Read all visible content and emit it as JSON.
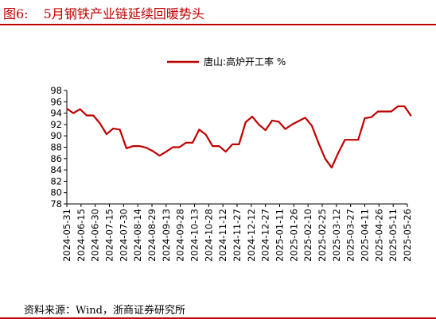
{
  "header": {
    "figure_label": "图6:",
    "title": "5月钢铁产业链延续回暖势头"
  },
  "footer": {
    "source": "资料来源：Wind，浙商证券研究所"
  },
  "colors": {
    "accent": "#c00000",
    "series": "#c00000",
    "axis": "#000000"
  },
  "chart_data": {
    "type": "line",
    "title": "",
    "xlabel": "",
    "ylabel": "",
    "ylim": [
      78,
      98
    ],
    "yticks": [
      78,
      80,
      82,
      84,
      86,
      88,
      90,
      92,
      94,
      96,
      98
    ],
    "grid": false,
    "legend_position": "top-center",
    "x_tick_labels": [
      "2024-05-31",
      "2024-06-15",
      "2024-06-30",
      "2024-07-15",
      "2024-07-30",
      "2024-08-14",
      "2024-08-29",
      "2024-09-13",
      "2024-09-28",
      "2024-10-13",
      "2024-10-28",
      "2024-11-12",
      "2024-11-27",
      "2024-12-12",
      "2024-12-27",
      "2025-01-11",
      "2025-01-26",
      "2025-02-10",
      "2025-02-25",
      "2025-03-12",
      "2025-03-27",
      "2025-04-11",
      "2025-04-26",
      "2025-05-11",
      "2025-05-26"
    ],
    "series": [
      {
        "name": "唐山:高炉开工率 %",
        "points": [
          {
            "x": "2024-05-31",
            "y": 94.8
          },
          {
            "x": "2024-06-07",
            "y": 94.0
          },
          {
            "x": "2024-06-14",
            "y": 94.7
          },
          {
            "x": "2024-06-21",
            "y": 93.6
          },
          {
            "x": "2024-06-28",
            "y": 93.6
          },
          {
            "x": "2024-07-05",
            "y": 92.2
          },
          {
            "x": "2024-07-12",
            "y": 90.3
          },
          {
            "x": "2024-07-19",
            "y": 91.3
          },
          {
            "x": "2024-07-26",
            "y": 91.1
          },
          {
            "x": "2024-08-02",
            "y": 87.8
          },
          {
            "x": "2024-08-09",
            "y": 88.2
          },
          {
            "x": "2024-08-16",
            "y": 88.2
          },
          {
            "x": "2024-08-23",
            "y": 87.9
          },
          {
            "x": "2024-08-30",
            "y": 87.3
          },
          {
            "x": "2024-09-06",
            "y": 86.5
          },
          {
            "x": "2024-09-13",
            "y": 87.2
          },
          {
            "x": "2024-09-20",
            "y": 88.0
          },
          {
            "x": "2024-09-27",
            "y": 88.0
          },
          {
            "x": "2024-10-04",
            "y": 88.8
          },
          {
            "x": "2024-10-11",
            "y": 88.8
          },
          {
            "x": "2024-10-18",
            "y": 91.1
          },
          {
            "x": "2024-10-25",
            "y": 90.2
          },
          {
            "x": "2024-11-01",
            "y": 88.2
          },
          {
            "x": "2024-11-08",
            "y": 88.2
          },
          {
            "x": "2024-11-15",
            "y": 87.2
          },
          {
            "x": "2024-11-22",
            "y": 88.5
          },
          {
            "x": "2024-11-29",
            "y": 88.5
          },
          {
            "x": "2024-12-06",
            "y": 92.4
          },
          {
            "x": "2024-12-13",
            "y": 93.4
          },
          {
            "x": "2024-12-20",
            "y": 92.0
          },
          {
            "x": "2024-12-27",
            "y": 91.0
          },
          {
            "x": "2025-01-03",
            "y": 92.7
          },
          {
            "x": "2025-01-10",
            "y": 92.5
          },
          {
            "x": "2025-01-17",
            "y": 91.2
          },
          {
            "x": "2025-01-24",
            "y": 92.0
          },
          {
            "x": "2025-01-31",
            "y": 92.6
          },
          {
            "x": "2025-02-07",
            "y": 93.2
          },
          {
            "x": "2025-02-14",
            "y": 91.8
          },
          {
            "x": "2025-02-21",
            "y": 88.8
          },
          {
            "x": "2025-02-28",
            "y": 86.0
          },
          {
            "x": "2025-03-07",
            "y": 84.4
          },
          {
            "x": "2025-03-14",
            "y": 87.0
          },
          {
            "x": "2025-03-21",
            "y": 89.3
          },
          {
            "x": "2025-03-28",
            "y": 89.3
          },
          {
            "x": "2025-04-04",
            "y": 89.3
          },
          {
            "x": "2025-04-11",
            "y": 93.1
          },
          {
            "x": "2025-04-18",
            "y": 93.3
          },
          {
            "x": "2025-04-25",
            "y": 94.3
          },
          {
            "x": "2025-05-02",
            "y": 94.3
          },
          {
            "x": "2025-05-09",
            "y": 94.3
          },
          {
            "x": "2025-05-16",
            "y": 95.2
          },
          {
            "x": "2025-05-23",
            "y": 95.2
          },
          {
            "x": "2025-05-30",
            "y": 93.5
          }
        ]
      }
    ]
  }
}
